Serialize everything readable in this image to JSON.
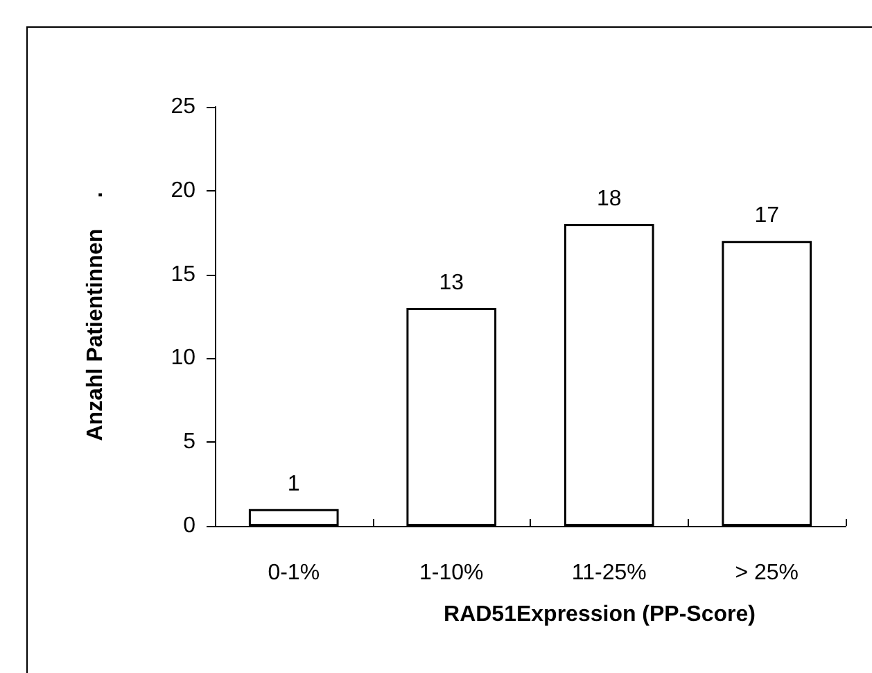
{
  "chart_data": {
    "type": "bar",
    "xlabel": "RAD51Expression (PP-Score)",
    "ylabel": "Anzahl Patientinnen     .",
    "categories": [
      "0-1%",
      "1-10%",
      "11-25%",
      "> 25%"
    ],
    "values": [
      1,
      13,
      18,
      17
    ],
    "color": "#ffffff",
    "ylim": [
      0,
      25
    ],
    "yticks": [
      0,
      5,
      10,
      15,
      20,
      25
    ],
    "grid": false,
    "data_labels": true
  }
}
